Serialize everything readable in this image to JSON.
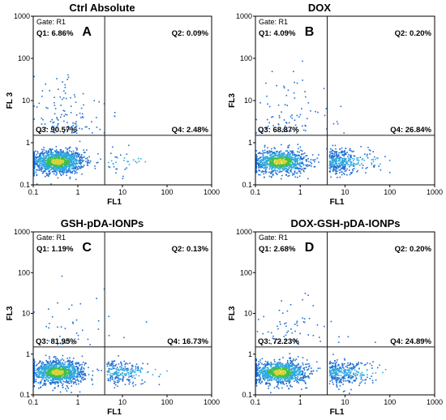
{
  "chart_data": [
    {
      "type": "scatter",
      "title": "Ctrl Absolute",
      "letter": "A",
      "gate": "Gate: R1",
      "xlabel": "FL1",
      "ylabel": "FL 3",
      "xscale": "log",
      "yscale": "log",
      "xlim": [
        0.1,
        1000
      ],
      "ylim": [
        0.1,
        1000
      ],
      "xticks": [
        "0.1",
        "1",
        "10",
        "100",
        "1000"
      ],
      "yticks": [
        "0.1",
        "1",
        "10",
        "100",
        "1000"
      ],
      "quadrant_gate": {
        "x": 4,
        "y": 1.5
      },
      "quadrants": [
        {
          "label": "Q1",
          "text": "Q1: 6.86%",
          "percent": 6.86
        },
        {
          "label": "Q2",
          "text": "Q2: 0.09%",
          "percent": 0.09
        },
        {
          "label": "Q3",
          "text": "Q3: 90.57%",
          "percent": 90.57
        },
        {
          "label": "Q4",
          "text": "Q4: 2.48%",
          "percent": 2.48
        }
      ]
    },
    {
      "type": "scatter",
      "title": "DOX",
      "letter": "B",
      "gate": "Gate: R1",
      "xlabel": "FL1",
      "ylabel": "FL3",
      "xscale": "log",
      "yscale": "log",
      "xlim": [
        0.1,
        1000
      ],
      "ylim": [
        0.1,
        1000
      ],
      "xticks": [
        "0.1",
        "1",
        "10",
        "100",
        "1000"
      ],
      "yticks": [
        "0.1",
        "1",
        "10",
        "100",
        "1000"
      ],
      "quadrant_gate": {
        "x": 4,
        "y": 1.5
      },
      "quadrants": [
        {
          "label": "Q1",
          "text": "Q1: 4.09%",
          "percent": 4.09
        },
        {
          "label": "Q2",
          "text": "Q2: 0.20%",
          "percent": 0.2
        },
        {
          "label": "Q3",
          "text": "Q3: 68.87%",
          "percent": 68.87
        },
        {
          "label": "Q4",
          "text": "Q4: 26.84%",
          "percent": 26.84
        }
      ]
    },
    {
      "type": "scatter",
      "title": "GSH-pDA-IONPs",
      "letter": "C",
      "gate": "Gate: R1",
      "xlabel": "FL1",
      "ylabel": "FL3",
      "xscale": "log",
      "yscale": "log",
      "xlim": [
        0.1,
        1000
      ],
      "ylim": [
        0.1,
        1000
      ],
      "xticks": [
        "0.1",
        "1",
        "10",
        "100",
        "1000"
      ],
      "yticks": [
        "0.1",
        "1",
        "10",
        "100",
        "1000"
      ],
      "quadrant_gate": {
        "x": 4,
        "y": 1.5
      },
      "quadrants": [
        {
          "label": "Q1",
          "text": "Q1: 1.19%",
          "percent": 1.19
        },
        {
          "label": "Q2",
          "text": "Q2: 0.13%",
          "percent": 0.13
        },
        {
          "label": "Q3",
          "text": "Q3: 81.95%",
          "percent": 81.95
        },
        {
          "label": "Q4",
          "text": "Q4: 16.73%",
          "percent": 16.73
        }
      ]
    },
    {
      "type": "scatter",
      "title": "DOX-GSH-pDA-IONPs",
      "letter": "D",
      "gate": "Gate: R1",
      "xlabel": "FL1",
      "ylabel": "FL3",
      "xscale": "log",
      "yscale": "log",
      "xlim": [
        0.1,
        1000
      ],
      "ylim": [
        0.1,
        1000
      ],
      "xticks": [
        "0.1",
        "1",
        "10",
        "100",
        "1000"
      ],
      "yticks": [
        "0.1",
        "1",
        "10",
        "100",
        "1000"
      ],
      "quadrant_gate": {
        "x": 4,
        "y": 1.5
      },
      "quadrants": [
        {
          "label": "Q1",
          "text": "Q1: 2.68%",
          "percent": 2.68
        },
        {
          "label": "Q2",
          "text": "Q2: 0.20%",
          "percent": 0.2
        },
        {
          "label": "Q3",
          "text": "Q3: 72.23%",
          "percent": 72.23
        },
        {
          "label": "Q4",
          "text": "Q4: 24.89%",
          "percent": 24.89
        }
      ]
    }
  ],
  "colors": {
    "sparse_dot": "#1f6fd1",
    "dense_dot": "#2fa8e0",
    "core_dot": "#3cbf4a",
    "hot_dot": "#d8d23a",
    "gate_line": "#1a1a1a",
    "axis": "#000000",
    "text": "#000000"
  }
}
